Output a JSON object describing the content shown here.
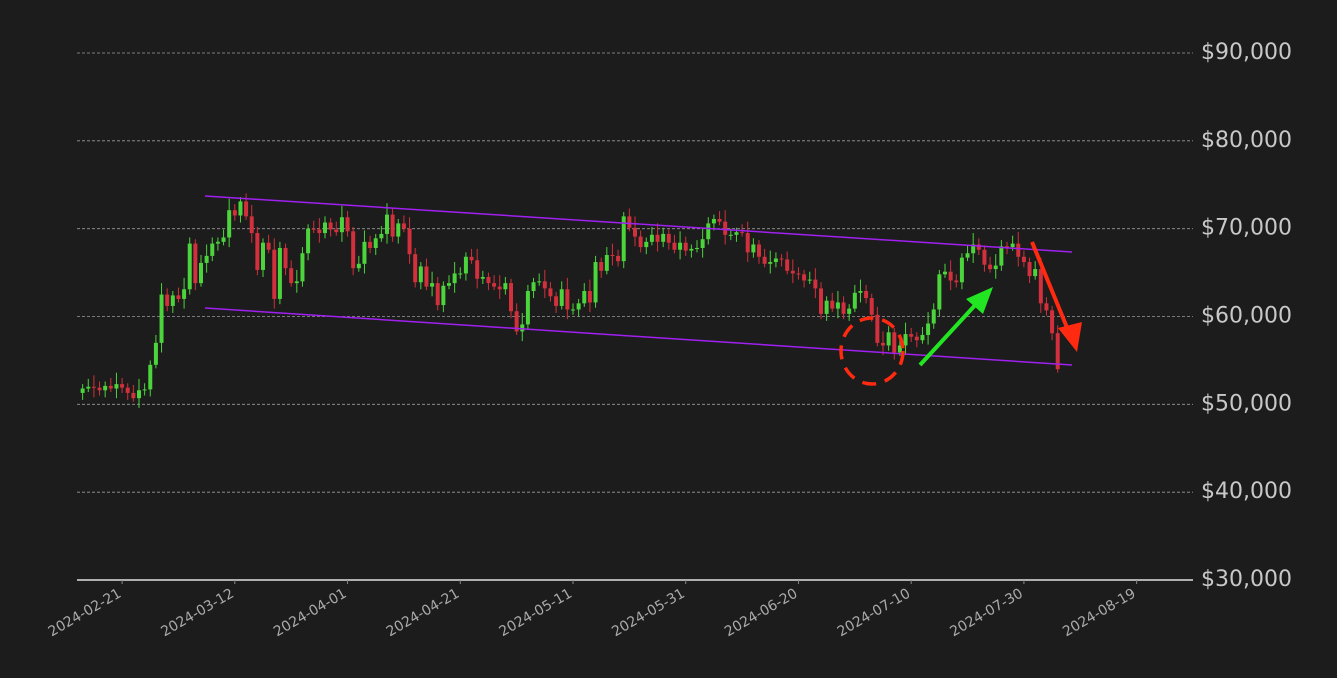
{
  "chart_data": {
    "type": "candlestick",
    "x": [
      "2024-02-14",
      "2024-02-15",
      "2024-02-16",
      "2024-02-17",
      "2024-02-18",
      "2024-02-19",
      "2024-02-20",
      "2024-02-21",
      "2024-02-22",
      "2024-02-23",
      "2024-02-24",
      "2024-02-25",
      "2024-02-26",
      "2024-02-27",
      "2024-02-28",
      "2024-02-29",
      "2024-03-01",
      "2024-03-02",
      "2024-03-03",
      "2024-03-04",
      "2024-03-05",
      "2024-03-06",
      "2024-03-07",
      "2024-03-08",
      "2024-03-09",
      "2024-03-10",
      "2024-03-11",
      "2024-03-12",
      "2024-03-13",
      "2024-03-14",
      "2024-03-15",
      "2024-03-16",
      "2024-03-17",
      "2024-03-18",
      "2024-03-19",
      "2024-03-20",
      "2024-03-21",
      "2024-03-22",
      "2024-03-23",
      "2024-03-24",
      "2024-03-25",
      "2024-03-26",
      "2024-03-27",
      "2024-03-28",
      "2024-03-29",
      "2024-03-30",
      "2024-03-31",
      "2024-04-01",
      "2024-04-02",
      "2024-04-03",
      "2024-04-04",
      "2024-04-05",
      "2024-04-06",
      "2024-04-07",
      "2024-04-08",
      "2024-04-09",
      "2024-04-10",
      "2024-04-11",
      "2024-04-12",
      "2024-04-13",
      "2024-04-14",
      "2024-04-15",
      "2024-04-16",
      "2024-04-17",
      "2024-04-18",
      "2024-04-19",
      "2024-04-20",
      "2024-04-21",
      "2024-04-22",
      "2024-04-23",
      "2024-04-24",
      "2024-04-25",
      "2024-04-26",
      "2024-04-27",
      "2024-04-28",
      "2024-04-29",
      "2024-04-30",
      "2024-05-01",
      "2024-05-02",
      "2024-05-03",
      "2024-05-04",
      "2024-05-05",
      "2024-05-06",
      "2024-05-07",
      "2024-05-08",
      "2024-05-09",
      "2024-05-10",
      "2024-05-11",
      "2024-05-12",
      "2024-05-13",
      "2024-05-14",
      "2024-05-15",
      "2024-05-16",
      "2024-05-17",
      "2024-05-18",
      "2024-05-19",
      "2024-05-20",
      "2024-05-21",
      "2024-05-22",
      "2024-05-23",
      "2024-05-24",
      "2024-05-25",
      "2024-05-26",
      "2024-05-27",
      "2024-05-28",
      "2024-05-29",
      "2024-05-30",
      "2024-05-31",
      "2024-06-01",
      "2024-06-02",
      "2024-06-03",
      "2024-06-04",
      "2024-06-05",
      "2024-06-06",
      "2024-06-07",
      "2024-06-08",
      "2024-06-09",
      "2024-06-10",
      "2024-06-11",
      "2024-06-12",
      "2024-06-13",
      "2024-06-14",
      "2024-06-15",
      "2024-06-16",
      "2024-06-17",
      "2024-06-18",
      "2024-06-19",
      "2024-06-20",
      "2024-06-21",
      "2024-06-22",
      "2024-06-23",
      "2024-06-24",
      "2024-06-25",
      "2024-06-26",
      "2024-06-27",
      "2024-06-28",
      "2024-06-29",
      "2024-06-30",
      "2024-07-01",
      "2024-07-02",
      "2024-07-03",
      "2024-07-04",
      "2024-07-05",
      "2024-07-06",
      "2024-07-07",
      "2024-07-08",
      "2024-07-09",
      "2024-07-10",
      "2024-07-11",
      "2024-07-12",
      "2024-07-13",
      "2024-07-14",
      "2024-07-15",
      "2024-07-16",
      "2024-07-17",
      "2024-07-18",
      "2024-07-19",
      "2024-07-20",
      "2024-07-21",
      "2024-07-22",
      "2024-07-23",
      "2024-07-24",
      "2024-07-25",
      "2024-07-26",
      "2024-07-27",
      "2024-07-28",
      "2024-07-29",
      "2024-07-30",
      "2024-07-31",
      "2024-08-01",
      "2024-08-02",
      "2024-08-03",
      "2024-08-04",
      "2024-08-05"
    ],
    "open": [
      51300,
      51800,
      52000,
      51900,
      51600,
      52100,
      51800,
      52300,
      51900,
      51300,
      50700,
      51600,
      51700,
      54500,
      57000,
      62500,
      61200,
      62400,
      62000,
      63100,
      68300,
      63800,
      66100,
      66900,
      68300,
      68500,
      69000,
      72100,
      71500,
      73100,
      71400,
      69500,
      65300,
      68400,
      67600,
      62000,
      67800,
      65500,
      63800,
      64000,
      67200,
      70000,
      69900,
      69500,
      70700,
      69900,
      69600,
      71300,
      69700,
      65500,
      66000,
      68500,
      67800,
      68900,
      69400,
      71600,
      69100,
      70600,
      70000,
      67100,
      63900,
      65700,
      63400,
      63800,
      61300,
      63500,
      63800,
      64900,
      64900,
      66800,
      66400,
      64300,
      64500,
      63800,
      63400,
      63100,
      63800,
      60600,
      58300,
      59100,
      62900,
      63900,
      64000,
      63200,
      62300,
      61200,
      63100,
      60800,
      60800,
      61500,
      62900,
      61600,
      66200,
      65200,
      67000,
      66900,
      66300,
      71400,
      70100,
      69100,
      67900,
      68500,
      69300,
      68500,
      69400,
      68400,
      67600,
      68400,
      67500,
      67700,
      67800,
      68800,
      70600,
      71100,
      70800,
      69300,
      69300,
      69600,
      69500,
      67300,
      68200,
      66800,
      66000,
      66200,
      66600,
      66500,
      65200,
      64900,
      64800,
      64100,
      64200,
      63200,
      60300,
      61800,
      60900,
      61600,
      60300,
      60900,
      62700,
      62900,
      62100,
      60200,
      57000,
      56700,
      58200,
      55900,
      56700,
      58000,
      57700,
      57300,
      57900,
      59200,
      60800,
      64800,
      65100,
      64100,
      63900,
      66700,
      67200,
      68200,
      67600,
      65900,
      65400,
      65800,
      68000,
      67900,
      68300,
      66800,
      66200,
      64600,
      65400,
      61500,
      60700,
      58100
    ],
    "high": [
      52300,
      52900,
      53300,
      52600,
      52600,
      53000,
      53600,
      53000,
      52400,
      52200,
      52900,
      52400,
      55000,
      57900,
      63800,
      63200,
      62900,
      63300,
      64400,
      69000,
      68800,
      67000,
      68200,
      69000,
      69000,
      69900,
      73400,
      72800,
      73600,
      74000,
      72700,
      70200,
      68900,
      69300,
      68900,
      68500,
      68300,
      66400,
      65300,
      67900,
      70500,
      70900,
      71200,
      71400,
      71200,
      70800,
      72600,
      72000,
      70200,
      66900,
      69800,
      69200,
      69400,
      70300,
      72900,
      72300,
      71100,
      71500,
      71300,
      67800,
      66200,
      66600,
      65100,
      64500,
      64000,
      64700,
      66200,
      65600,
      67300,
      67700,
      67700,
      65200,
      65000,
      64700,
      64700,
      64500,
      64300,
      61500,
      60400,
      63600,
      64400,
      64900,
      65300,
      63900,
      62800,
      64000,
      64400,
      61500,
      62000,
      63800,
      64200,
      66900,
      66700,
      67900,
      68300,
      67600,
      71900,
      72300,
      71400,
      69800,
      69000,
      70200,
      70600,
      70100,
      69900,
      69300,
      69700,
      69100,
      68200,
      68700,
      70100,
      71300,
      71600,
      72000,
      72100,
      70000,
      70100,
      70500,
      70800,
      68900,
      68700,
      67700,
      67500,
      67300,
      67100,
      67400,
      66500,
      65600,
      65300,
      65100,
      65500,
      63900,
      62300,
      62700,
      62900,
      62300,
      61400,
      63600,
      64200,
      63600,
      62600,
      61100,
      58300,
      58900,
      58700,
      57600,
      59300,
      58700,
      58200,
      58800,
      60500,
      61500,
      65300,
      66000,
      66400,
      64800,
      67200,
      68100,
      69500,
      68900,
      68100,
      66800,
      67100,
      68700,
      68500,
      69200,
      69600,
      67500,
      66700,
      66300,
      66700,
      62200,
      61200,
      59000
    ],
    "low": [
      50500,
      51400,
      50800,
      51000,
      50800,
      51400,
      50700,
      51300,
      50500,
      50300,
      49600,
      51000,
      50900,
      54100,
      55900,
      60600,
      60400,
      61600,
      60900,
      62500,
      63000,
      63400,
      65000,
      66300,
      67500,
      68100,
      67900,
      70900,
      70700,
      71000,
      68400,
      64700,
      64500,
      67200,
      60900,
      61400,
      64700,
      63400,
      62700,
      63400,
      66400,
      69500,
      68400,
      68900,
      69100,
      69200,
      68500,
      69100,
      64700,
      65100,
      64900,
      67200,
      67000,
      68500,
      68300,
      68500,
      68300,
      69600,
      66000,
      63300,
      63100,
      63000,
      62300,
      60700,
      60500,
      63100,
      62700,
      64300,
      64100,
      66000,
      63200,
      63700,
      63000,
      63000,
      62000,
      62500,
      59800,
      57900,
      57200,
      58500,
      62100,
      63500,
      62100,
      61700,
      60400,
      60800,
      59700,
      60200,
      60000,
      61100,
      60500,
      61000,
      64400,
      64800,
      65800,
      65700,
      65500,
      69700,
      68000,
      67300,
      67100,
      68100,
      67400,
      67900,
      67600,
      67200,
      66500,
      66900,
      66700,
      67300,
      66700,
      68200,
      69800,
      70400,
      68200,
      68700,
      68500,
      69100,
      66200,
      66700,
      66000,
      65600,
      64900,
      65600,
      65700,
      64800,
      63800,
      64200,
      63300,
      63700,
      62100,
      59700,
      59500,
      60500,
      59800,
      59700,
      59500,
      60500,
      61600,
      61500,
      59400,
      56600,
      55600,
      56100,
      55100,
      55500,
      55600,
      57100,
      56500,
      56900,
      56800,
      58600,
      60000,
      64400,
      63000,
      63300,
      63100,
      66300,
      66100,
      67000,
      65100,
      65000,
      64300,
      65200,
      67100,
      67500,
      65700,
      65600,
      63800,
      64200,
      60400,
      60100,
      57300,
      53600
    ],
    "close": [
      51800,
      52000,
      51900,
      51600,
      52100,
      51800,
      52300,
      51900,
      51300,
      50700,
      51600,
      51700,
      54500,
      57000,
      62500,
      61200,
      62400,
      62000,
      63100,
      68300,
      63800,
      66100,
      66900,
      68300,
      68500,
      69000,
      72100,
      71500,
      73100,
      71400,
      69500,
      65300,
      68400,
      67600,
      62000,
      67800,
      65500,
      63800,
      64000,
      67200,
      70000,
      69900,
      69500,
      70700,
      69900,
      69600,
      71300,
      69700,
      65500,
      66000,
      68500,
      67800,
      68900,
      69400,
      71600,
      69100,
      70600,
      70000,
      67100,
      63900,
      65700,
      63400,
      63800,
      61300,
      63500,
      63800,
      64900,
      64900,
      66800,
      66400,
      64300,
      64500,
      63800,
      63400,
      63100,
      63800,
      60600,
      58300,
      59100,
      62900,
      63900,
      64000,
      63200,
      62300,
      61200,
      63100,
      60800,
      60800,
      61500,
      62900,
      61600,
      66200,
      65200,
      67000,
      66900,
      66300,
      71400,
      70100,
      69100,
      67900,
      68500,
      69300,
      68500,
      69400,
      68400,
      67600,
      68400,
      67500,
      67700,
      67800,
      68800,
      70600,
      71100,
      70800,
      69300,
      69300,
      69600,
      69500,
      67300,
      68200,
      66800,
      66000,
      66200,
      66600,
      66500,
      65200,
      64900,
      64800,
      64100,
      64200,
      63200,
      60300,
      61800,
      60900,
      61600,
      60300,
      60900,
      62700,
      62900,
      62100,
      60200,
      57000,
      56700,
      58200,
      55900,
      56700,
      58000,
      57700,
      57300,
      57900,
      59200,
      60800,
      64800,
      65100,
      64100,
      63900,
      66700,
      67200,
      68200,
      67600,
      65900,
      65400,
      65800,
      68000,
      67900,
      68300,
      66800,
      66200,
      64600,
      65400,
      61500,
      60700,
      58100,
      54000
    ],
    "up_color": "#4cd43c",
    "down_color": "#d2303c",
    "xlim": [
      "2024-02-13",
      "2024-08-29"
    ],
    "xticks": [
      "2024-02-21",
      "2024-03-12",
      "2024-04-01",
      "2024-04-21",
      "2024-05-11",
      "2024-05-31",
      "2024-06-20",
      "2024-07-10",
      "2024-07-30",
      "2024-08-19"
    ],
    "ylim": [
      30000,
      90000
    ],
    "yticks": [
      {
        "value": 30000,
        "label": "$30,000"
      },
      {
        "value": 40000,
        "label": "$40,000"
      },
      {
        "value": 50000,
        "label": "$50,000"
      },
      {
        "value": 60000,
        "label": "$60,000"
      },
      {
        "value": 70000,
        "label": "$70,000"
      },
      {
        "value": 80000,
        "label": "$80,000"
      },
      {
        "value": 90000,
        "label": "$90,000"
      }
    ],
    "grid": true
  }
}
